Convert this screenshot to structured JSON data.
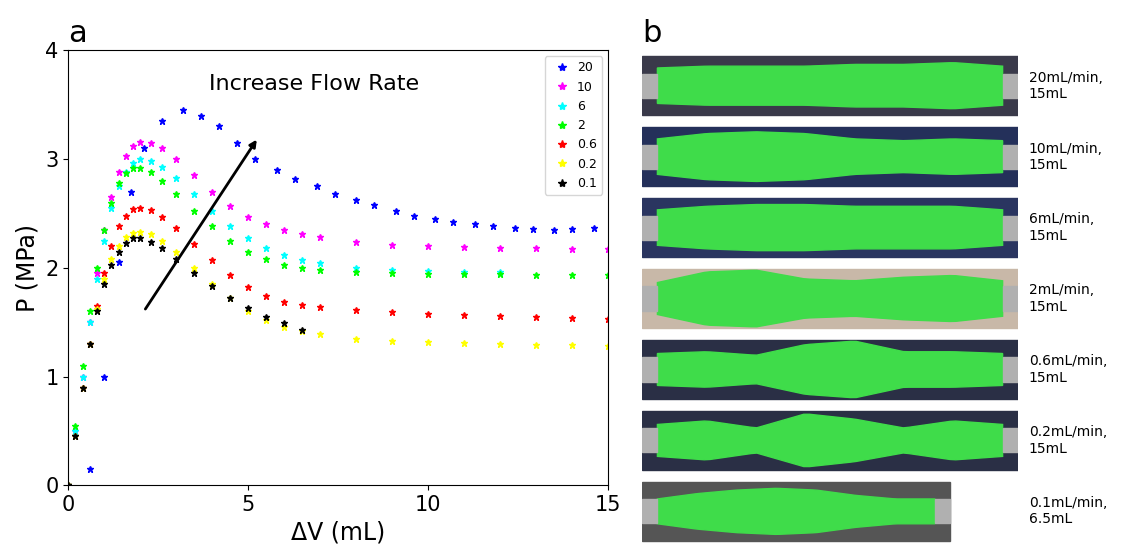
{
  "chart_data": {
    "type": "scatter",
    "title": "a",
    "x_label": "ΔV (mL)",
    "y_label": "P (MPa)",
    "xlim": [
      0,
      15
    ],
    "xticks": [
      0,
      5,
      10,
      15
    ],
    "ylim": [
      0,
      4
    ],
    "yticks": [
      0,
      1,
      2,
      3,
      4
    ],
    "legend": "upper right",
    "marker": "*",
    "annotations": [
      {
        "text": "Increase Flow Rate"
      }
    ],
    "series": [
      {
        "name": "20",
        "color": "#0000ff",
        "x": [
          0.6,
          1.0,
          1.4,
          1.75,
          2.1,
          2.6,
          3.2,
          3.7,
          4.2,
          4.7,
          5.2,
          5.8,
          6.3,
          6.9,
          7.4,
          8.0,
          8.5,
          9.1,
          9.6,
          10.2,
          10.7,
          11.3,
          11.8,
          12.4,
          12.9,
          13.5,
          14.0,
          14.6
        ],
        "values": [
          0.15,
          1.0,
          2.05,
          2.7,
          3.1,
          3.35,
          3.45,
          3.4,
          3.3,
          3.15,
          3.0,
          2.9,
          2.82,
          2.75,
          2.68,
          2.62,
          2.58,
          2.52,
          2.48,
          2.45,
          2.42,
          2.4,
          2.38,
          2.37,
          2.36,
          2.35,
          2.36,
          2.37
        ]
      },
      {
        "name": "10",
        "color": "#ff00ff",
        "x": [
          0,
          0.2,
          0.4,
          0.6,
          0.8,
          1.0,
          1.2,
          1.4,
          1.6,
          1.8,
          2.0,
          2.3,
          2.6,
          3.0,
          3.5,
          4.0,
          4.5,
          5.0,
          5.5,
          6.0,
          6.5,
          7,
          8,
          9,
          10,
          11,
          12,
          13,
          14,
          15
        ],
        "values": [
          0,
          0.5,
          1.0,
          1.5,
          1.95,
          2.35,
          2.65,
          2.88,
          3.03,
          3.12,
          3.16,
          3.15,
          3.1,
          3.0,
          2.85,
          2.7,
          2.57,
          2.47,
          2.4,
          2.35,
          2.31,
          2.28,
          2.24,
          2.21,
          2.2,
          2.19,
          2.18,
          2.18,
          2.17,
          2.17
        ]
      },
      {
        "name": "6",
        "color": "#00ffff",
        "x": [
          0,
          0.2,
          0.4,
          0.6,
          0.8,
          1.0,
          1.2,
          1.4,
          1.6,
          1.8,
          2.0,
          2.3,
          2.6,
          3.0,
          3.5,
          4.0,
          4.5,
          5.0,
          5.5,
          6,
          6.5,
          7,
          8,
          9,
          10,
          11,
          12
        ],
        "values": [
          0,
          0.5,
          1.0,
          1.5,
          1.9,
          2.25,
          2.55,
          2.75,
          2.88,
          2.96,
          3.0,
          2.98,
          2.93,
          2.83,
          2.68,
          2.52,
          2.38,
          2.27,
          2.18,
          2.12,
          2.07,
          2.04,
          2.0,
          1.98,
          1.97,
          1.96,
          1.96
        ]
      },
      {
        "name": "2",
        "color": "#00ff00",
        "x": [
          0,
          0.2,
          0.4,
          0.6,
          0.8,
          1.0,
          1.2,
          1.4,
          1.6,
          1.8,
          2.0,
          2.3,
          2.6,
          3.0,
          3.5,
          4.0,
          4.5,
          5,
          5.5,
          6,
          6.5,
          7,
          8,
          9,
          10,
          11,
          12,
          13,
          14,
          15
        ],
        "values": [
          0,
          0.55,
          1.1,
          1.6,
          2.0,
          2.35,
          2.6,
          2.78,
          2.87,
          2.92,
          2.92,
          2.88,
          2.8,
          2.68,
          2.52,
          2.38,
          2.25,
          2.15,
          2.08,
          2.03,
          2.0,
          1.98,
          1.96,
          1.95,
          1.94,
          1.94,
          1.94,
          1.93,
          1.93,
          1.93
        ]
      },
      {
        "name": "0.6",
        "color": "#ff0000",
        "x": [
          0,
          0.2,
          0.4,
          0.6,
          0.8,
          1.0,
          1.2,
          1.4,
          1.6,
          1.8,
          2.0,
          2.3,
          2.6,
          3.0,
          3.5,
          4,
          4.5,
          5,
          5.5,
          6,
          6.5,
          7,
          8,
          9,
          10,
          11,
          12,
          13,
          14,
          15
        ],
        "values": [
          0,
          0.45,
          0.9,
          1.3,
          1.65,
          1.95,
          2.2,
          2.38,
          2.48,
          2.54,
          2.55,
          2.53,
          2.47,
          2.37,
          2.22,
          2.07,
          1.93,
          1.82,
          1.74,
          1.69,
          1.66,
          1.64,
          1.61,
          1.59,
          1.58,
          1.57,
          1.56,
          1.55,
          1.54,
          1.53
        ]
      },
      {
        "name": "0.2",
        "color": "#ffff00",
        "x": [
          0,
          0.2,
          0.4,
          0.6,
          0.8,
          1.0,
          1.2,
          1.4,
          1.6,
          1.8,
          2.0,
          2.3,
          2.6,
          3.0,
          3.5,
          4,
          4.5,
          5,
          5.5,
          6,
          6.5,
          7,
          8,
          9,
          10,
          11,
          12,
          13,
          14,
          15
        ],
        "values": [
          0,
          0.45,
          0.9,
          1.3,
          1.62,
          1.9,
          2.08,
          2.2,
          2.28,
          2.32,
          2.33,
          2.31,
          2.25,
          2.15,
          2.0,
          1.85,
          1.72,
          1.6,
          1.52,
          1.46,
          1.42,
          1.39,
          1.35,
          1.33,
          1.32,
          1.31,
          1.3,
          1.29,
          1.29,
          1.28
        ]
      },
      {
        "name": "0.1",
        "color": "#000000",
        "x": [
          0,
          0.2,
          0.4,
          0.6,
          0.8,
          1.0,
          1.2,
          1.4,
          1.6,
          1.8,
          2.0,
          2.3,
          2.6,
          3.0,
          3.5,
          4.0,
          4.5,
          5.0,
          5.5,
          6.0,
          6.5
        ],
        "values": [
          0,
          0.45,
          0.9,
          1.3,
          1.6,
          1.85,
          2.03,
          2.15,
          2.23,
          2.27,
          2.27,
          2.24,
          2.18,
          2.08,
          1.95,
          1.83,
          1.72,
          1.63,
          1.55,
          1.49,
          1.43
        ]
      }
    ]
  },
  "panel_b": {
    "title": "b",
    "photos": [
      {
        "caption": "20mL/min,\n15mL"
      },
      {
        "caption": "10mL/min,\n15mL"
      },
      {
        "caption": "6mL/min,\n15mL"
      },
      {
        "caption": "2mL/min,\n15mL"
      },
      {
        "caption": "0.6mL/min,\n15mL"
      },
      {
        "caption": "0.2mL/min,\n15mL"
      },
      {
        "caption": "0.1mL/min,\n6.5mL"
      }
    ]
  }
}
